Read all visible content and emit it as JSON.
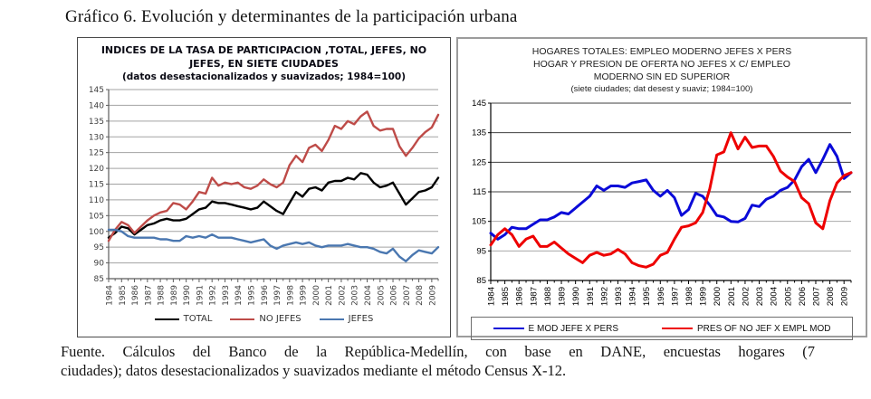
{
  "page": {
    "title": "Gráfico 6. Evolución y determinantes de la participación urbana",
    "source_lines": [
      "Fuente. Cálculos del Banco de la República-Medellín, con base en  DANE, encuestas hogares (7",
      "ciudades); datos desestacionalizados y suavizados mediante el método Census X-12."
    ]
  },
  "chart_data": [
    {
      "type": "line",
      "panel": "left",
      "title_lines": [
        "INDICES DE LA TASA DE PARTICIPACION ,TOTAL, JEFES, NO",
        "JEFES, EN SIETE CIUDADES",
        "(datos desestacionalizados y suavizados; 1984=100)"
      ],
      "ylim": [
        85,
        145
      ],
      "ytick_step": 5,
      "grid": true,
      "legend_position": "bottom",
      "x_tick_labels": [
        "1984",
        "1985",
        "1986",
        "1987",
        "1988",
        "1989",
        "1990",
        "1991",
        "1992",
        "1993",
        "1994",
        "1995",
        "1996",
        "1997",
        "1998",
        "1999",
        "2000",
        "2001",
        "2002",
        "2003",
        "2004",
        "2005",
        "2006",
        "2007",
        "2008",
        "2009"
      ],
      "points_per_year": 2,
      "series": [
        {
          "name": "TOTAL",
          "color": "#000000",
          "values": [
            98,
            99.5,
            101.5,
            101,
            99,
            100.5,
            102,
            102.5,
            103.5,
            104,
            103.5,
            103.5,
            104,
            105.5,
            107,
            107.5,
            109.5,
            109,
            109,
            108.5,
            108,
            107.5,
            107,
            107.5,
            109.5,
            108,
            106.5,
            105.5,
            109,
            112.5,
            111,
            113.5,
            114,
            113,
            115.5,
            116,
            116,
            117,
            116.5,
            118.5,
            118,
            115.5,
            114,
            114.5,
            115.5,
            112,
            108.5,
            110.5,
            112.5,
            113,
            114,
            117
          ]
        },
        {
          "name": "NO JEFES",
          "color": "#BE4B48",
          "values": [
            97,
            100.5,
            103,
            102,
            99.5,
            101.5,
            103.5,
            105,
            106,
            106.5,
            109,
            108.5,
            107,
            109.5,
            112.5,
            112,
            117,
            114.5,
            115.5,
            115,
            115.5,
            114,
            113.5,
            114.5,
            116.5,
            115,
            114,
            115.5,
            121,
            124,
            122,
            126.5,
            127.5,
            125.5,
            129,
            133.5,
            132.5,
            135,
            134,
            136.5,
            138,
            133.5,
            132,
            132.5,
            132.5,
            127,
            124,
            126.5,
            129.5,
            131.5,
            133,
            137
          ]
        },
        {
          "name": "JEFES",
          "color": "#4A77B0",
          "values": [
            100.5,
            100.5,
            100,
            98.5,
            98,
            98,
            98,
            98,
            97.5,
            97.5,
            97,
            97,
            98.5,
            98,
            98.5,
            98,
            99,
            98,
            98,
            98,
            97.5,
            97,
            96.5,
            97,
            97.5,
            95.5,
            94.5,
            95.5,
            96,
            96.5,
            96,
            96.5,
            95.5,
            95,
            95.5,
            95.5,
            95.5,
            96,
            95.5,
            95,
            95,
            94.5,
            93.5,
            93,
            94.5,
            92,
            90.5,
            92.5,
            94,
            93.5,
            93,
            95
          ]
        }
      ]
    },
    {
      "type": "line",
      "panel": "right",
      "title_lines": [
        "HOGARES TOTALES:  EMPLEO MODERNO JEFES X PERS",
        "HOGAR Y PRESION  DE OFERTA  NO JEFES X C/ EMPLEO",
        "MODERNO SIN ED SUPERIOR",
        "(siete ciudades; dat desest y suaviz; 1984=100)"
      ],
      "ylim": [
        85,
        145
      ],
      "ytick_step": 10,
      "grid": true,
      "legend_position": "bottom-boxed",
      "x_tick_labels": [
        "1984",
        "1985",
        "1986",
        "1987",
        "1988",
        "1989",
        "1990",
        "1991",
        "1992",
        "1993",
        "1994",
        "1995",
        "1996",
        "1997",
        "1998",
        "1999",
        "2000",
        "2001",
        "2002",
        "2003",
        "2004",
        "2005",
        "2006",
        "2007",
        "2008",
        "2009"
      ],
      "points_per_year": 2,
      "series": [
        {
          "name": "E MOD JEFE X PERS",
          "color": "#0A0AD8",
          "values": [
            101,
            99,
            100.5,
            103,
            102.5,
            102.5,
            104,
            105.5,
            105.5,
            106.5,
            108,
            107.5,
            109.5,
            111.5,
            113.5,
            117,
            115.5,
            117,
            117,
            116.5,
            118,
            118.5,
            119,
            115.5,
            113.5,
            115.5,
            113,
            107,
            109,
            114.5,
            113.5,
            110.5,
            107,
            106.5,
            105,
            104.8,
            106,
            110.5,
            110,
            112.5,
            113.5,
            115.5,
            116.5,
            119,
            123.5,
            126,
            121.5,
            126,
            131,
            127,
            119.5,
            121.5
          ]
        },
        {
          "name": "PRES OF NO JEF X EMPL MOD",
          "color": "#EE0000",
          "values": [
            97,
            100.5,
            102.5,
            100.5,
            96.5,
            99,
            100,
            96.5,
            96.5,
            98,
            96,
            94,
            92.5,
            91,
            93.5,
            94.5,
            93.5,
            94,
            95.5,
            94,
            91,
            90,
            89.5,
            90.5,
            93.5,
            94.5,
            99,
            103,
            103.5,
            104.5,
            108,
            116,
            127.5,
            128.5,
            135,
            129.5,
            133.5,
            130,
            130.5,
            130.5,
            127,
            122,
            120,
            118.5,
            113,
            111,
            104.5,
            102.5,
            112,
            118,
            120.5,
            121.5
          ]
        }
      ]
    }
  ]
}
